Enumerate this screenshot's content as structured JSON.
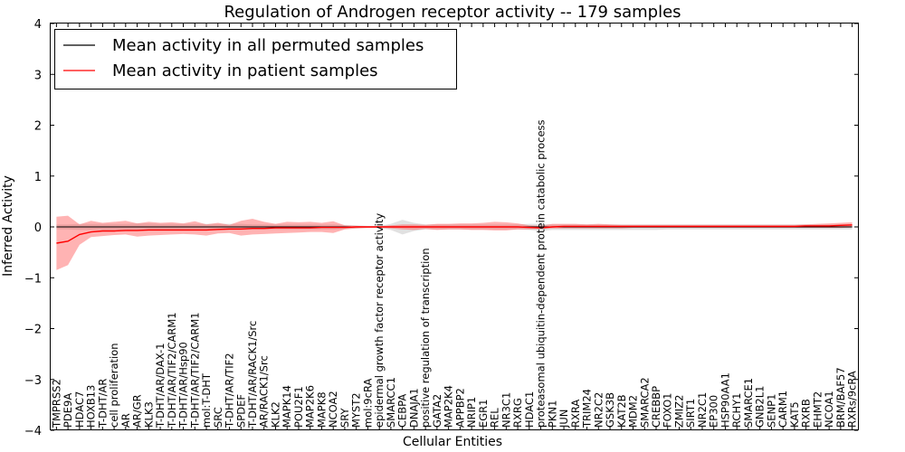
{
  "chart_data": {
    "type": "line",
    "title": "Regulation of Androgen receptor activity -- 179 samples",
    "xlabel": "Cellular Entities",
    "ylabel": "Inferred Activity",
    "ylim": [
      -4,
      4
    ],
    "yticks": [
      "4",
      "3",
      "2",
      "1",
      "0",
      "−1",
      "−2",
      "−3",
      "−4"
    ],
    "legend_position": "top-left",
    "entities": [
      "TMPRSS2",
      "PDE9A",
      "HDAC7",
      "HOXB13",
      "T-DHT/AR",
      "cell proliferation",
      "AR",
      "AR/GR",
      "KLK3",
      "T-DHT/AR/DAX-1",
      "T-DHT/AR/TIF2/CARM1",
      "T-DHT/AR/Hsp90",
      "T-DHT/AR/TIF2/CARM1",
      "mol:T-DHT",
      "SRC",
      "T-DHT/AR/TIF2",
      "SPDEF",
      "T-DHT/AR/RACK1/Src",
      "AR/RACK1/Src",
      "KLK2",
      "MAPK14",
      "POU2F1",
      "MAP2K6",
      "MAPK8",
      "NCOA2",
      "SRY",
      "MYST2",
      "mol:9cRA",
      "epidermal growth factor receptor activity",
      "SMARCC1",
      "CEBPA",
      "DNAJA1",
      "positive regulation of transcription",
      "GATA2",
      "MAP2K4",
      "APPBP2",
      "NRIP1",
      "EGR1",
      "REL",
      "NR3C1",
      "RXRG",
      "HDAC1",
      "proteasomal ubiquitin-dependent protein catabolic process",
      "PKN1",
      "JUN",
      "RXRA",
      "TRIM24",
      "NR2C2",
      "GSK3B",
      "KAT2B",
      "MDM2",
      "SMARCA2",
      "CREBBP",
      "FOXO1",
      "ZMIZ2",
      "SIRT1",
      "NR2C1",
      "EP300",
      "HSP90AA1",
      "RCHY1",
      "SMARCE1",
      "GNB2L1",
      "SENP1",
      "CARM1",
      "KAT5",
      "RXRB",
      "EHMT2",
      "NCOA1",
      "BRM/BAF57",
      "RXRs/9cRA"
    ],
    "series": [
      {
        "name": "Mean activity in all permuted samples",
        "color": "#000000",
        "values": [
          0,
          0,
          0,
          0,
          0,
          0,
          0,
          0,
          0,
          0,
          0,
          0,
          0,
          0,
          0,
          0,
          0,
          0,
          0,
          0,
          0,
          0,
          0,
          0,
          0,
          0,
          0,
          0,
          0,
          0,
          0,
          0,
          0,
          0,
          0,
          0,
          0,
          0,
          0,
          0,
          0,
          0,
          0,
          0,
          0,
          0,
          0,
          0,
          0,
          0,
          0,
          0,
          0,
          0,
          0,
          0,
          0,
          0,
          0,
          0,
          0,
          0,
          0,
          0,
          0,
          0,
          0,
          0,
          0,
          0
        ],
        "lower": [
          -0.05,
          -0.05,
          -0.06,
          -0.06,
          -0.06,
          -0.06,
          -0.06,
          -0.07,
          -0.07,
          -0.06,
          -0.06,
          -0.06,
          -0.06,
          -0.06,
          -0.06,
          -0.06,
          -0.06,
          -0.05,
          -0.05,
          -0.05,
          -0.05,
          -0.05,
          -0.05,
          -0.05,
          -0.05,
          -0.04,
          -0.03,
          -0.02,
          -0.02,
          -0.06,
          -0.15,
          -0.08,
          -0.05,
          -0.05,
          -0.05,
          -0.05,
          -0.05,
          -0.05,
          -0.05,
          -0.05,
          -0.05,
          -0.06,
          -0.08,
          -0.06,
          -0.06,
          -0.06,
          -0.06,
          -0.06,
          -0.06,
          -0.06,
          -0.06,
          -0.06,
          -0.06,
          -0.05,
          -0.05,
          -0.05,
          -0.05,
          -0.05,
          -0.05,
          -0.05,
          -0.05,
          -0.05,
          -0.05,
          -0.05,
          -0.05,
          -0.05,
          -0.05,
          -0.05,
          -0.05,
          -0.05
        ],
        "upper": [
          0.05,
          0.05,
          0.06,
          0.06,
          0.06,
          0.06,
          0.06,
          0.07,
          0.07,
          0.06,
          0.06,
          0.06,
          0.06,
          0.06,
          0.06,
          0.06,
          0.06,
          0.05,
          0.05,
          0.05,
          0.05,
          0.05,
          0.05,
          0.05,
          0.05,
          0.04,
          0.03,
          0.02,
          0.02,
          0.06,
          0.14,
          0.08,
          0.05,
          0.05,
          0.05,
          0.05,
          0.05,
          0.05,
          0.05,
          0.05,
          0.05,
          0.06,
          0.06,
          0.05,
          0.05,
          0.05,
          0.05,
          0.05,
          0.05,
          0.05,
          0.05,
          0.05,
          0.05,
          0.05,
          0.05,
          0.05,
          0.05,
          0.05,
          0.05,
          0.05,
          0.05,
          0.05,
          0.05,
          0.05,
          0.05,
          0.05,
          0.05,
          0.05,
          0.05,
          0.05
        ]
      },
      {
        "name": "Mean activity in patient samples",
        "color": "#ff0000",
        "values": [
          -0.32,
          -0.28,
          -0.15,
          -0.1,
          -0.08,
          -0.08,
          -0.07,
          -0.07,
          -0.06,
          -0.06,
          -0.06,
          -0.06,
          -0.06,
          -0.06,
          -0.05,
          -0.04,
          -0.04,
          -0.03,
          -0.03,
          -0.02,
          -0.02,
          -0.02,
          -0.02,
          -0.01,
          -0.01,
          -0.01,
          0,
          0,
          0,
          0,
          0,
          0,
          0,
          0,
          0,
          0,
          0,
          0,
          0,
          0,
          0,
          -0.01,
          -0.02,
          0,
          0.01,
          0.01,
          0.01,
          0.01,
          0.01,
          0.01,
          0.01,
          0.01,
          0.01,
          0.01,
          0.01,
          0.01,
          0.01,
          0.01,
          0.01,
          0.01,
          0.01,
          0.01,
          0.01,
          0.01,
          0.01,
          0.02,
          0.02,
          0.02,
          0.03,
          0.04
        ],
        "lower": [
          -0.85,
          -0.75,
          -0.35,
          -0.2,
          -0.18,
          -0.16,
          -0.15,
          -0.19,
          -0.17,
          -0.16,
          -0.15,
          -0.14,
          -0.15,
          -0.17,
          -0.13,
          -0.12,
          -0.17,
          -0.15,
          -0.14,
          -0.13,
          -0.12,
          -0.11,
          -0.1,
          -0.1,
          -0.12,
          -0.05,
          -0.03,
          -0.02,
          -0.02,
          -0.03,
          -0.05,
          -0.06,
          -0.04,
          -0.06,
          -0.05,
          -0.05,
          -0.06,
          -0.06,
          -0.07,
          -0.07,
          -0.05,
          -0.05,
          -0.04,
          -0.03,
          -0.03,
          -0.03,
          -0.03,
          -0.03,
          -0.03,
          -0.03,
          -0.02,
          -0.02,
          -0.02,
          -0.02,
          -0.02,
          -0.02,
          -0.02,
          -0.02,
          -0.02,
          -0.02,
          -0.02,
          -0.02,
          -0.02,
          -0.02,
          -0.02,
          -0.02,
          -0.02,
          -0.02,
          -0.02,
          -0.01
        ],
        "upper": [
          0.2,
          0.22,
          0.05,
          0.12,
          0.08,
          0.1,
          0.12,
          0.07,
          0.1,
          0.08,
          0.09,
          0.07,
          0.11,
          0.05,
          0.08,
          0.04,
          0.12,
          0.16,
          0.1,
          0.06,
          0.1,
          0.09,
          0.1,
          0.08,
          0.11,
          0.03,
          0.02,
          0.01,
          0.01,
          0.03,
          0.05,
          0.05,
          0.04,
          0.06,
          0.06,
          0.07,
          0.07,
          0.08,
          0.1,
          0.09,
          0.07,
          0.03,
          0.02,
          0.06,
          0.06,
          0.06,
          0.05,
          0.06,
          0.05,
          0.04,
          0.04,
          0.04,
          0.04,
          0.04,
          0.04,
          0.04,
          0.04,
          0.04,
          0.04,
          0.04,
          0.04,
          0.04,
          0.04,
          0.04,
          0.04,
          0.05,
          0.06,
          0.07,
          0.08,
          0.09
        ]
      }
    ]
  }
}
